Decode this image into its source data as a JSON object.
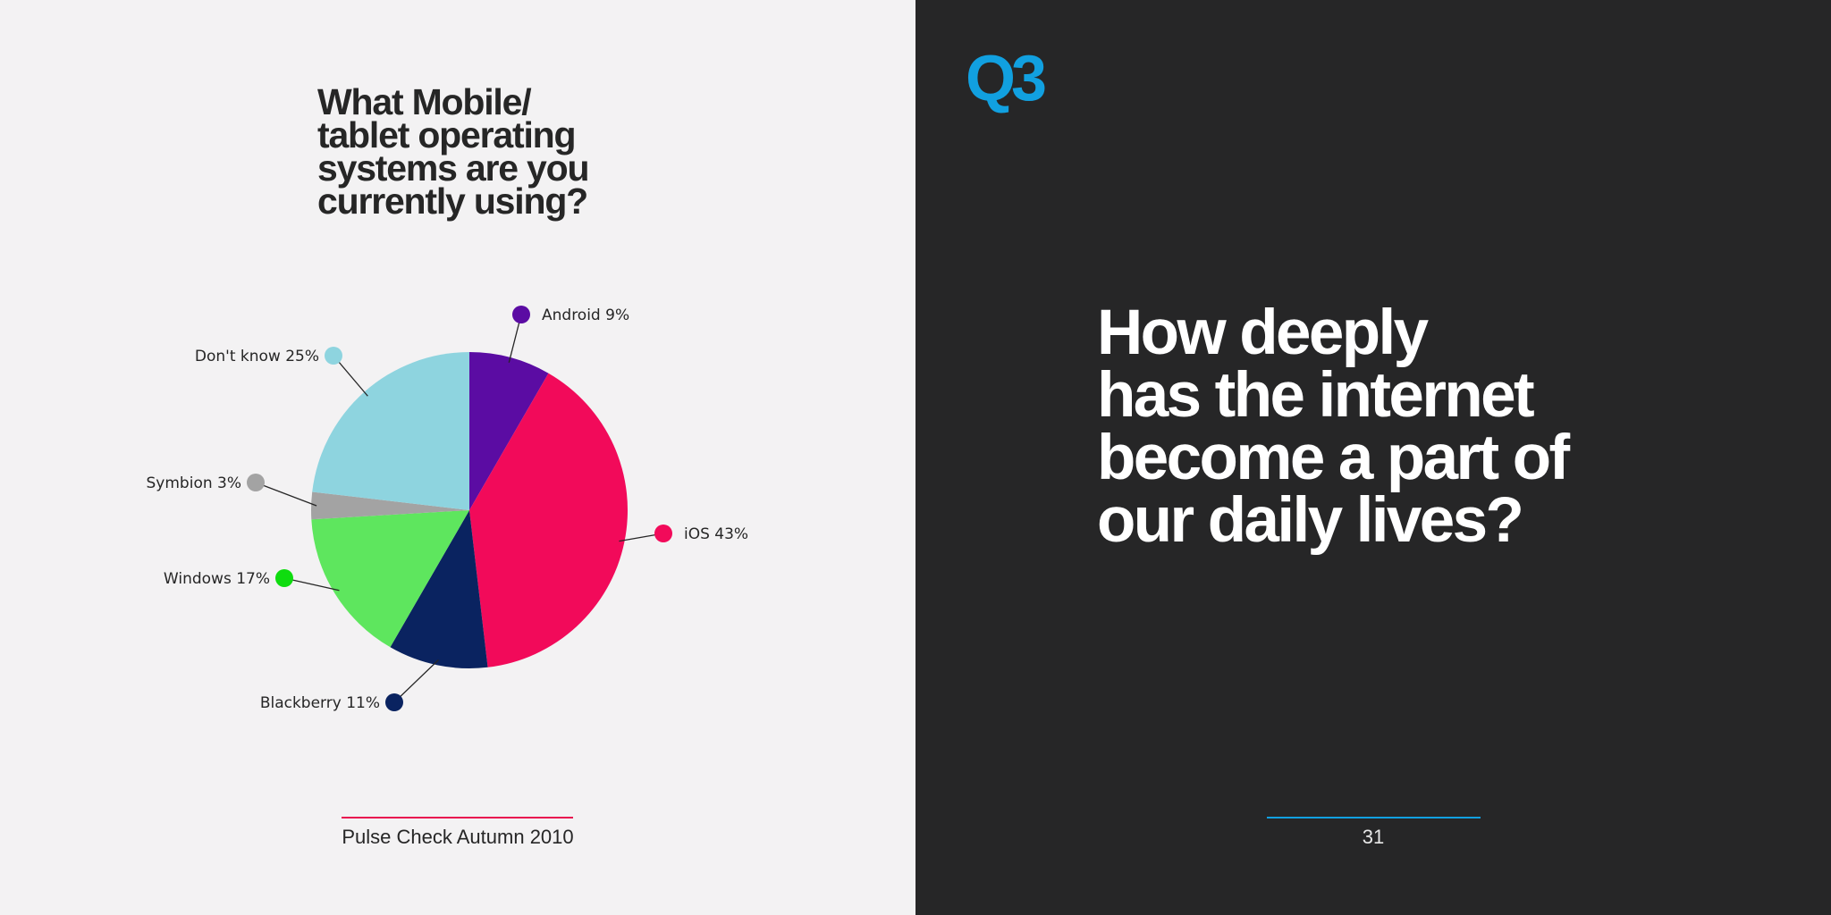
{
  "left_page": {
    "title": "What Mobile/\ntablet operating\nsystems are you\ncurrently using?",
    "footer_text": "Pulse Check Autumn 2010",
    "footer_line_color": "#e8104f"
  },
  "right_page": {
    "question_number": "Q3",
    "question_number_color": "#11a0e0",
    "question": "How deeply\nhas the internet\nbecome a part of\nour daily lives?",
    "page_number": "31",
    "footer_line_color": "#11a0e0"
  },
  "chart_data": {
    "type": "pie",
    "title": "What Mobile/tablet operating systems are you currently using?",
    "start_angle": "12 o'clock",
    "direction": "clockwise",
    "slices": [
      {
        "label": "Android 9%",
        "name": "Android",
        "value": 9,
        "color": "#5b0ca3",
        "dot_color": "#5b0ca3"
      },
      {
        "label": "iOS 43%",
        "name": "iOS",
        "value": 43,
        "color": "#f20a5a",
        "dot_color": "#f20a5a"
      },
      {
        "label": "Blackberry 11%",
        "name": "Blackberry",
        "value": 11,
        "color": "#0a2360",
        "dot_color": "#0a2360"
      },
      {
        "label": "Windows 17%",
        "name": "Windows",
        "value": 17,
        "color": "#5ee65e",
        "dot_color": "#0fdc0f"
      },
      {
        "label": "Symbion 3%",
        "name": "Symbion",
        "value": 3,
        "color": "#a3a3a3",
        "dot_color": "#a3a3a3"
      },
      {
        "label": "Don't know 25%",
        "name": "Don't know",
        "value": 25,
        "color": "#8ed4df",
        "dot_color": "#8ed4df"
      }
    ]
  }
}
